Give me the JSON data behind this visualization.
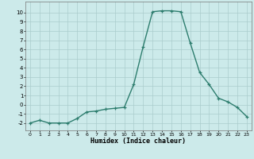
{
  "x": [
    0,
    1,
    2,
    3,
    4,
    5,
    6,
    7,
    8,
    9,
    10,
    11,
    12,
    13,
    14,
    15,
    16,
    17,
    18,
    19,
    20,
    21,
    22,
    23
  ],
  "y": [
    -2,
    -1.7,
    -2,
    -2,
    -2,
    -1.5,
    -0.8,
    -0.7,
    -0.5,
    -0.4,
    -0.3,
    2.2,
    6.3,
    10.1,
    10.2,
    10.2,
    10.1,
    6.7,
    3.5,
    2.2,
    0.7,
    0.3,
    -0.3,
    -1.3
  ],
  "xlabel": "Humidex (Indice chaleur)",
  "xlim": [
    -0.5,
    23.5
  ],
  "ylim": [
    -2.8,
    11.2
  ],
  "yticks": [
    -2,
    -1,
    0,
    1,
    2,
    3,
    4,
    5,
    6,
    7,
    8,
    9,
    10
  ],
  "xticks": [
    0,
    1,
    2,
    3,
    4,
    5,
    6,
    7,
    8,
    9,
    10,
    11,
    12,
    13,
    14,
    15,
    16,
    17,
    18,
    19,
    20,
    21,
    22,
    23
  ],
  "line_color": "#2d7d6e",
  "bg_color": "#cceaea",
  "grid_color": "#aacccc",
  "marker": "+",
  "marker_size": 3.5,
  "linewidth": 1.0
}
